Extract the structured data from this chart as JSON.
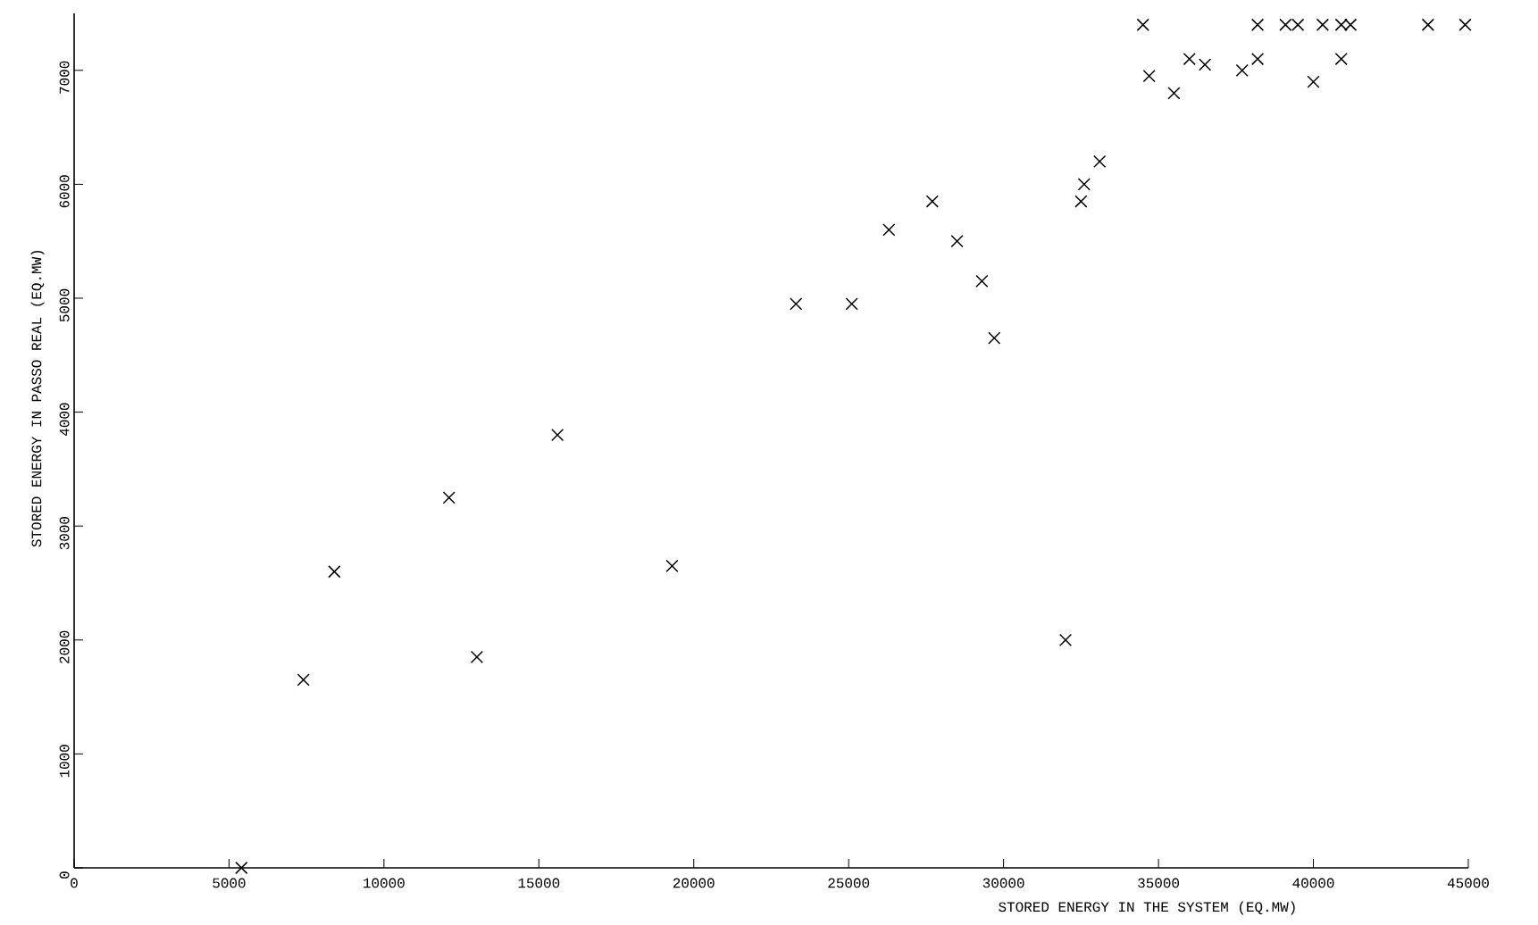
{
  "chart_data": {
    "type": "scatter",
    "xlabel": "STORED ENERGY IN THE SYSTEM (EQ.MW)",
    "ylabel": "STORED ENERGY IN PASSO REAL (EQ.MW)",
    "xlim": [
      0,
      45000
    ],
    "ylim": [
      0,
      7500
    ],
    "xticks": [
      0,
      5000,
      10000,
      15000,
      20000,
      25000,
      30000,
      35000,
      40000,
      45000
    ],
    "yticks": [
      0,
      1000,
      2000,
      3000,
      4000,
      5000,
      6000,
      7000
    ],
    "marker": "cross",
    "color": "#000000",
    "x": [
      5400,
      7400,
      8400,
      12100,
      13000,
      15600,
      19300,
      23300,
      25100,
      26300,
      27700,
      28500,
      29300,
      29700,
      32000,
      32500,
      32600,
      33100,
      34500,
      34700,
      35500,
      36000,
      36500,
      37700,
      38200,
      38200,
      39100,
      39500,
      40000,
      40300,
      40900,
      40900,
      41200,
      43700,
      44900
    ],
    "values": [
      0,
      1650,
      2600,
      3250,
      1850,
      3800,
      2650,
      4950,
      4950,
      5600,
      5850,
      5500,
      5150,
      4650,
      2000,
      5850,
      6000,
      6200,
      7400,
      6950,
      6800,
      7100,
      7050,
      7000,
      7100,
      7400,
      7400,
      7400,
      6900,
      7400,
      7100,
      7400,
      7400,
      7400,
      7400
    ]
  }
}
